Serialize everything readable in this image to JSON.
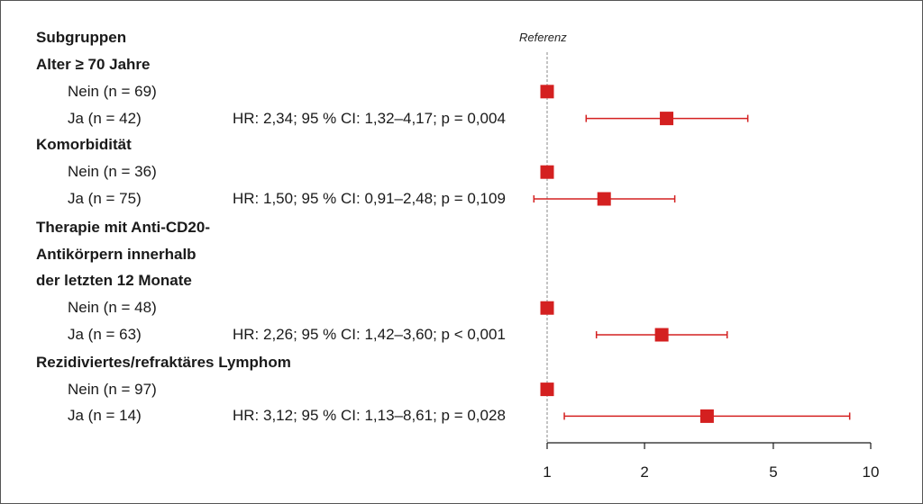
{
  "chart_data": {
    "type": "forest",
    "column_header": "Subgruppen",
    "reference_label": "Referenz",
    "x_scale": "log",
    "x_ticks": [
      "1",
      "2",
      "5",
      "10"
    ],
    "x_tick_values": [
      1,
      2,
      5,
      10
    ],
    "xlim": [
      1,
      10
    ],
    "rows": [
      {
        "label": "Alter ≥ 70 Jahre",
        "kind": "group"
      },
      {
        "label": "Nein (n = 69)",
        "kind": "item",
        "hr": 1
      },
      {
        "label": "Ja (n = 42)",
        "kind": "item",
        "hr": 2.34,
        "ci": [
          1.32,
          4.17
        ],
        "text": "HR: 2,34; 95 % CI: 1,32–4,17; p = 0,004"
      },
      {
        "label": "Komorbidität",
        "kind": "group"
      },
      {
        "label": "Nein (n = 36)",
        "kind": "item",
        "hr": 1
      },
      {
        "label": "Ja (n = 75)",
        "kind": "item",
        "hr": 1.5,
        "ci": [
          0.91,
          2.48
        ],
        "text": "HR: 1,50; 95 % CI: 0,91–2,48; p = 0,109"
      },
      {
        "label": "Therapie mit Anti-CD20-",
        "kind": "group"
      },
      {
        "label": "Antikörpern innerhalb",
        "kind": "group"
      },
      {
        "label": "der letzten 12 Monate",
        "kind": "group"
      },
      {
        "label": "Nein (n = 48)",
        "kind": "item",
        "hr": 1
      },
      {
        "label": "Ja (n = 63)",
        "kind": "item",
        "hr": 2.26,
        "ci": [
          1.42,
          3.6
        ],
        "text": "HR: 2,26; 95 % CI: 1,42–3,60; p < 0,001"
      },
      {
        "label": "Rezidiviertes/refraktäres Lymphom",
        "kind": "group"
      },
      {
        "label": "Nein (n = 97)",
        "kind": "item",
        "hr": 1
      },
      {
        "label": "Ja (n = 14)",
        "kind": "item",
        "hr": 3.12,
        "ci": [
          1.13,
          8.61
        ],
        "text": "HR: 3,12; 95 % CI: 1,13–8,61; p = 0,028"
      }
    ],
    "colors": {
      "marker": "#d42020",
      "axis": "#1a1a1a",
      "reference_line": "#888888"
    }
  }
}
